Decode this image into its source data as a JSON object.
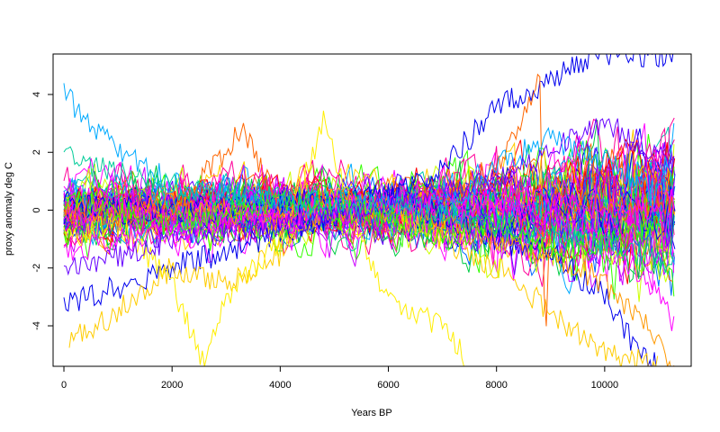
{
  "chart_data": {
    "type": "line",
    "title": "",
    "xlabel": "Years BP",
    "ylabel": "proxy anomaly deg C",
    "xlim": [
      -200,
      11600
    ],
    "ylim": [
      -5.4,
      5.4
    ],
    "x_ticks": [
      0,
      2000,
      4000,
      6000,
      8000,
      10000
    ],
    "x_tick_labels": [
      "0",
      "2000",
      "4000",
      "6000",
      "8000",
      "10000"
    ],
    "y_ticks": [
      -4,
      -2,
      0,
      2,
      4
    ],
    "y_tick_labels": [
      "-4",
      "-2",
      "0",
      "2",
      "4"
    ],
    "grid": false,
    "legend": "none",
    "palette": [
      "#ff0000",
      "#ff6600",
      "#ffcc00",
      "#ccff00",
      "#33ff00",
      "#00cc44",
      "#00ccaa",
      "#00aaff",
      "#0066ff",
      "#0000ee",
      "#6600ff",
      "#cc00ff",
      "#ff00ff",
      "#ff0099"
    ],
    "series": [
      {
        "color": "#0000ee",
        "x": [
          0,
          2000,
          4000,
          6000,
          7000,
          8000,
          9000,
          9500,
          10000,
          10500,
          11300
        ],
        "y": [
          -3.3,
          -2.0,
          -0.8,
          0.5,
          1.5,
          3.5,
          4.5,
          5.0,
          5.4,
          5.4,
          5.4
        ]
      },
      {
        "color": "#0000ee",
        "x": [
          0,
          2000,
          4000,
          6000,
          7000,
          8000,
          9000,
          10000,
          10500,
          11000
        ],
        "y": [
          0.2,
          0.0,
          0.3,
          0.5,
          -0.2,
          -1.0,
          -1.5,
          -3.0,
          -4.5,
          -5.4
        ]
      },
      {
        "color": "#ff9900",
        "x": [
          0,
          2000,
          4000,
          6000,
          7000,
          8000,
          9000,
          10000,
          11000,
          11300
        ],
        "y": [
          0.0,
          0.2,
          -0.3,
          0.2,
          -0.5,
          -1.0,
          -1.5,
          -2.5,
          -4.5,
          -5.4
        ]
      },
      {
        "color": "#ffcc00",
        "x": [
          100,
          1000,
          2000,
          3000,
          4000,
          5000,
          6000,
          7000,
          8000,
          9000,
          10000,
          11000
        ],
        "y": [
          -4.5,
          -3.5,
          -2.0,
          -2.5,
          -1.5,
          0.5,
          0.0,
          -1.0,
          -2.0,
          -3.5,
          -5.0,
          -5.4
        ]
      },
      {
        "color": "#ffee00",
        "x": [
          0,
          1000,
          2000,
          2600,
          3000,
          4000,
          4800,
          5500,
          6000,
          7000,
          7500
        ],
        "y": [
          -1.0,
          -0.5,
          -2.5,
          -5.4,
          -3.0,
          -1.0,
          3.0,
          -1.0,
          -3.0,
          -4.0,
          -5.4
        ]
      },
      {
        "color": "#ff6600",
        "x": [
          0,
          2000,
          3300,
          4000,
          5000,
          6000,
          7000,
          8000,
          8800,
          8900,
          9000,
          10000,
          11300
        ],
        "y": [
          0.0,
          -0.2,
          2.8,
          0.0,
          0.3,
          0.0,
          0.5,
          1.5,
          4.5,
          -4.8,
          0.5,
          0.0,
          0.3
        ]
      },
      {
        "color": "#ff00ff",
        "x": [
          0,
          1000,
          2000,
          3000,
          4000,
          5000,
          6000,
          7000,
          8000,
          9000,
          10000,
          11000,
          11300
        ],
        "y": [
          -0.3,
          0.0,
          -0.3,
          0.2,
          -0.5,
          0.2,
          0.4,
          0.0,
          0.3,
          -0.3,
          -1.0,
          -3.0,
          -4.0
        ]
      },
      {
        "color": "#ff00ff",
        "x": [
          0,
          1500,
          3000,
          4500,
          6000,
          7500,
          9000,
          10500,
          11300
        ],
        "y": [
          -1.5,
          -0.8,
          -0.5,
          0.0,
          0.2,
          0.5,
          0.3,
          -0.2,
          0.5
        ]
      },
      {
        "color": "#00aaff",
        "x": [
          0,
          1000,
          2000,
          3000,
          4000,
          5000,
          6000,
          7000,
          8000,
          9000,
          10000,
          11000,
          11300
        ],
        "y": [
          4.0,
          2.0,
          1.0,
          0.5,
          0.2,
          0.0,
          0.3,
          0.0,
          1.5,
          2.5,
          1.8,
          0.5,
          2.9
        ]
      },
      {
        "color": "#33ff00",
        "x": [
          0,
          2000,
          4000,
          6000,
          7000,
          8000,
          9000,
          10000,
          11000,
          11300
        ],
        "y": [
          0.5,
          -0.5,
          0.3,
          -0.2,
          -1.0,
          -0.5,
          -1.5,
          -1.0,
          -0.5,
          -3.0
        ]
      },
      {
        "color": "#6600ff",
        "x": [
          0,
          2000,
          4000,
          6000,
          8000,
          9000,
          10000,
          11300
        ],
        "y": [
          -2.2,
          -1.0,
          -0.5,
          0.2,
          1.0,
          2.0,
          3.0,
          1.5
        ]
      },
      {
        "color": "#00cc99",
        "x": [
          0,
          2000,
          4000,
          6000,
          8000,
          10000,
          11300
        ],
        "y": [
          1.8,
          0.8,
          0.4,
          0.2,
          -0.5,
          -1.2,
          -1.8
        ]
      }
    ]
  }
}
